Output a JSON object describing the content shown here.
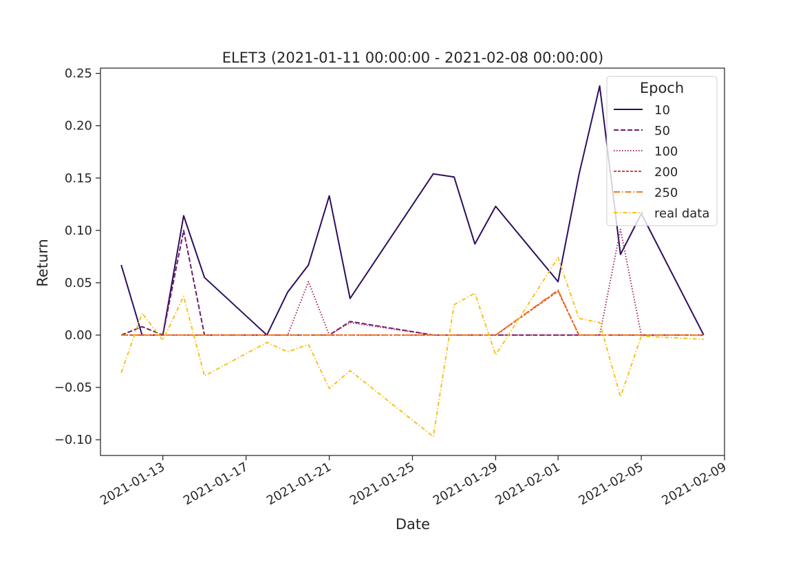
{
  "chart_data": {
    "type": "line",
    "title": "ELET3 (2021-01-11 00:00:00 - 2021-02-08 00:00:00)",
    "xlabel": "Date",
    "ylabel": "Return",
    "xlim": [
      "2021-01-10",
      "2021-02-09"
    ],
    "ylim": [
      -0.115,
      0.255
    ],
    "xticks": [
      "2021-01-13",
      "2021-01-17",
      "2021-01-21",
      "2021-01-25",
      "2021-01-29",
      "2021-02-01",
      "2021-02-05",
      "2021-02-09"
    ],
    "yticks": [
      0.25,
      0.2,
      0.15,
      0.1,
      0.05,
      0.0,
      -0.05,
      -0.1
    ],
    "ytick_labels": [
      "0.25",
      "0.20",
      "0.15",
      "0.10",
      "0.05",
      "0.00",
      "−0.05",
      "−0.10"
    ],
    "grid": false,
    "legend": {
      "title": "Epoch",
      "placement": "top-right"
    },
    "x": [
      "2021-01-11",
      "2021-01-12",
      "2021-01-13",
      "2021-01-14",
      "2021-01-15",
      "2021-01-18",
      "2021-01-19",
      "2021-01-20",
      "2021-01-21",
      "2021-01-22",
      "2021-01-26",
      "2021-01-27",
      "2021-01-28",
      "2021-01-29",
      "2021-02-01",
      "2021-02-02",
      "2021-02-03",
      "2021-02-04",
      "2021-02-05",
      "2021-02-08"
    ],
    "series": [
      {
        "name": "10",
        "color": "#2c0d5c",
        "dash": "solid",
        "values": [
          0.067,
          0.0,
          0.0,
          0.114,
          0.055,
          0.0,
          0.041,
          0.067,
          0.133,
          0.035,
          0.154,
          0.151,
          0.087,
          0.123,
          0.051,
          0.153,
          0.238,
          0.077,
          0.116,
          0.0
        ]
      },
      {
        "name": "50",
        "color": "#6c1c6e",
        "dash": "dashed",
        "values": [
          0.0,
          0.008,
          0.0,
          0.1,
          0.0,
          0.0,
          0.0,
          0.0,
          0.0,
          0.013,
          0.0,
          0.0,
          0.0,
          0.0,
          0.0,
          0.0,
          0.0,
          0.0,
          0.0,
          0.0
        ]
      },
      {
        "name": "100",
        "color": "#a3235f",
        "dash": "dotted",
        "values": [
          0.0,
          0.0,
          0.0,
          0.0,
          0.0,
          0.0,
          0.0,
          0.051,
          0.0,
          0.012,
          0.0,
          0.0,
          0.0,
          0.0,
          0.0,
          0.0,
          0.0,
          0.101,
          0.0,
          0.0
        ]
      },
      {
        "name": "200",
        "color": "#dd4633",
        "dash": "dashed-short",
        "values": [
          0.0,
          0.0,
          0.0,
          0.0,
          0.0,
          0.0,
          0.0,
          0.0,
          0.0,
          0.0,
          0.0,
          0.0,
          0.0,
          0.0,
          0.042,
          0.0,
          0.0,
          0.0,
          0.0,
          0.0
        ]
      },
      {
        "name": "250",
        "color": "#f0791a",
        "dash": "dashdot",
        "values": [
          0.0,
          0.0,
          0.0,
          0.0,
          0.0,
          0.0,
          0.0,
          0.0,
          0.0,
          0.0,
          0.0,
          0.0,
          0.0,
          0.0,
          0.043,
          0.0,
          0.0,
          0.0,
          0.0,
          0.0
        ]
      },
      {
        "name": "real data",
        "color": "#f6c21c",
        "dash": "dashdot-loose",
        "values": [
          -0.036,
          0.021,
          -0.005,
          0.037,
          -0.039,
          -0.007,
          -0.016,
          -0.009,
          -0.051,
          -0.034,
          -0.097,
          0.029,
          0.04,
          -0.019,
          0.074,
          0.016,
          0.012,
          -0.059,
          -0.001,
          -0.004
        ]
      }
    ]
  }
}
